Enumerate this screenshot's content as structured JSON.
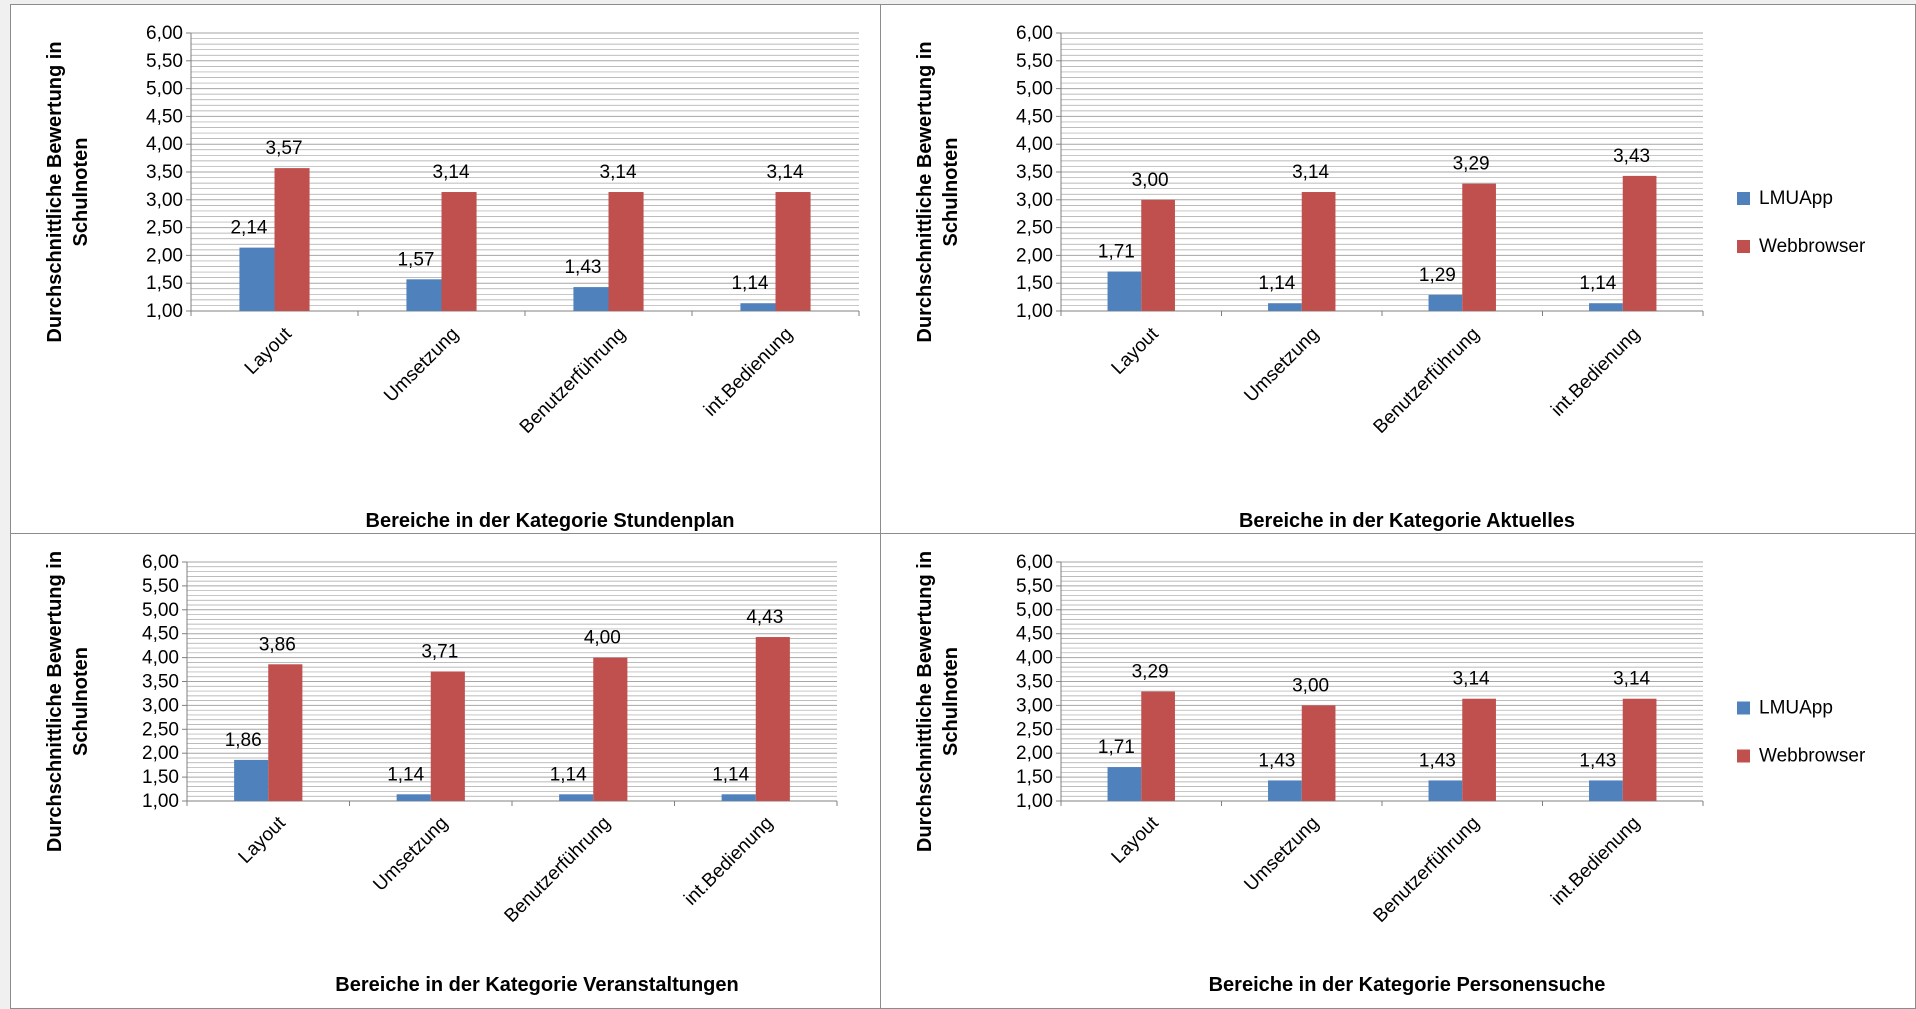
{
  "colors": {
    "LMUApp": "#4f81bd",
    "Webbrowser": "#c0504d",
    "grid": "#a6a6a6",
    "axis": "#808080"
  },
  "chart_data": [
    {
      "type": "bar",
      "xlabel": "Bereiche in der Kategorie Stundenplan",
      "ylabel_lines": [
        "Durchschnittliche Bewertung in",
        "Schulnoten"
      ],
      "categories": [
        "Layout",
        "Umsetzung",
        "Benutzerführung",
        "int.Bedienung"
      ],
      "series": [
        {
          "name": "LMUApp",
          "values": [
            2.14,
            1.57,
            1.43,
            1.14
          ],
          "labels": [
            "2,14",
            "1,57",
            "1,43",
            "1,14"
          ]
        },
        {
          "name": "Webbrowser",
          "values": [
            3.57,
            3.14,
            3.14,
            3.14
          ],
          "labels": [
            "3,57",
            "3,14",
            "3,14",
            "3,14"
          ]
        }
      ],
      "ylim": [
        1,
        6
      ],
      "yticks": [
        "1,00",
        "1,50",
        "2,00",
        "2,50",
        "3,00",
        "3,50",
        "4,00",
        "4,50",
        "5,00",
        "5,50",
        "6,00"
      ],
      "grid": true,
      "legend": "none"
    },
    {
      "type": "bar",
      "xlabel": "Bereiche in der Kategorie Aktuelles",
      "ylabel_lines": [
        "Durchschnittliche Bewertung in",
        "Schulnoten"
      ],
      "categories": [
        "Layout",
        "Umsetzung",
        "Benutzerführung",
        "int.Bedienung"
      ],
      "series": [
        {
          "name": "LMUApp",
          "values": [
            1.71,
            1.14,
            1.29,
            1.14
          ],
          "labels": [
            "1,71",
            "1,14",
            "1,29",
            "1,14"
          ]
        },
        {
          "name": "Webbrowser",
          "values": [
            3.0,
            3.14,
            3.29,
            3.43
          ],
          "labels": [
            "3,00",
            "3,14",
            "3,29",
            "3,43"
          ]
        }
      ],
      "ylim": [
        1,
        6
      ],
      "yticks": [
        "1,00",
        "1,50",
        "2,00",
        "2,50",
        "3,00",
        "3,50",
        "4,00",
        "4,50",
        "5,00",
        "5,50",
        "6,00"
      ],
      "grid": true,
      "legend": "right"
    },
    {
      "type": "bar",
      "xlabel": "Bereiche in der Kategorie Veranstaltungen",
      "ylabel_lines": [
        "Durchschnittliche Bewertung in",
        "Schulnoten"
      ],
      "categories": [
        "Layout",
        "Umsetzung",
        "Benutzerführung",
        "int.Bedienung"
      ],
      "series": [
        {
          "name": "LMUApp",
          "values": [
            1.86,
            1.14,
            1.14,
            1.14
          ],
          "labels": [
            "1,86",
            "1,14",
            "1,14",
            "1,14"
          ]
        },
        {
          "name": "Webbrowser",
          "values": [
            3.86,
            3.71,
            4.0,
            4.43
          ],
          "labels": [
            "3,86",
            "3,71",
            "4,00",
            "4,43"
          ]
        }
      ],
      "ylim": [
        1,
        6
      ],
      "yticks": [
        "1,00",
        "1,50",
        "2,00",
        "2,50",
        "3,00",
        "3,50",
        "4,00",
        "4,50",
        "5,00",
        "5,50",
        "6,00"
      ],
      "grid": true,
      "legend": "none"
    },
    {
      "type": "bar",
      "xlabel": "Bereiche in der Kategorie Personensuche",
      "ylabel_lines": [
        "Durchschnittliche Bewertung in",
        "Schulnoten"
      ],
      "categories": [
        "Layout",
        "Umsetzung",
        "Benutzerführung",
        "int.Bedienung"
      ],
      "series": [
        {
          "name": "LMUApp",
          "values": [
            1.71,
            1.43,
            1.43,
            1.43
          ],
          "labels": [
            "1,71",
            "1,43",
            "1,43",
            "1,43"
          ]
        },
        {
          "name": "Webbrowser",
          "values": [
            3.29,
            3.0,
            3.14,
            3.14
          ],
          "labels": [
            "3,29",
            "3,00",
            "3,14",
            "3,14"
          ]
        }
      ],
      "ylim": [
        1,
        6
      ],
      "yticks": [
        "1,00",
        "1,50",
        "2,00",
        "2,50",
        "3,00",
        "3,50",
        "4,00",
        "4,50",
        "5,00",
        "5,50",
        "6,00"
      ],
      "grid": true,
      "legend": "right"
    }
  ]
}
